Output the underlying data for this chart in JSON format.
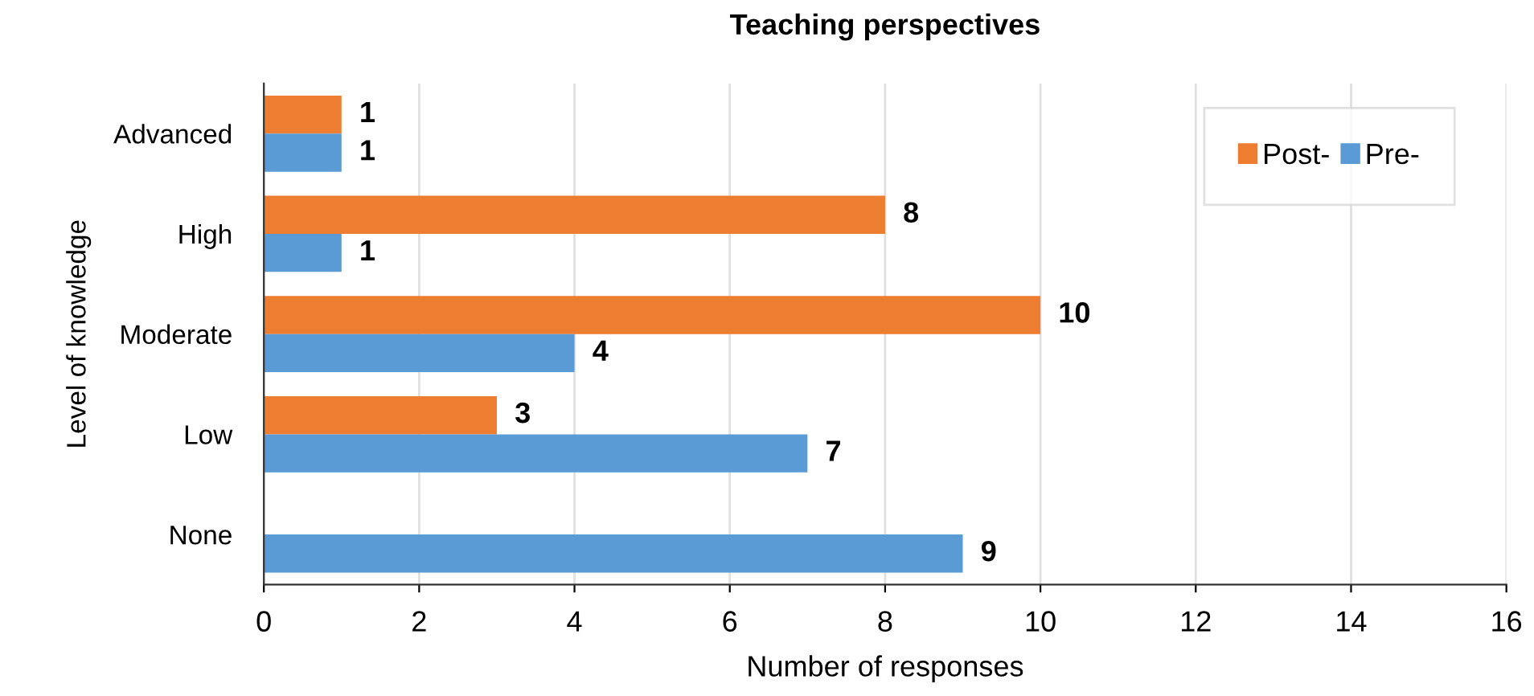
{
  "chart_data": {
    "type": "bar",
    "orientation": "horizontal",
    "title": "Teaching perspectives",
    "xlabel": "Number of responses",
    "ylabel": "Level of knowledge",
    "categories": [
      "Advanced",
      "High",
      "Moderate",
      "Low",
      "None"
    ],
    "series": [
      {
        "name": "Post-",
        "color": "#ed7d31",
        "values": [
          1,
          8,
          10,
          3,
          null
        ]
      },
      {
        "name": "Pre-",
        "color": "#5b9bd5",
        "values": [
          1,
          1,
          4,
          7,
          9
        ]
      }
    ],
    "xlim": [
      0,
      16
    ],
    "xticks": [
      0,
      2,
      4,
      6,
      8,
      10,
      12,
      14,
      16
    ],
    "grid": "x",
    "legend": "top right",
    "data_labels": true
  }
}
